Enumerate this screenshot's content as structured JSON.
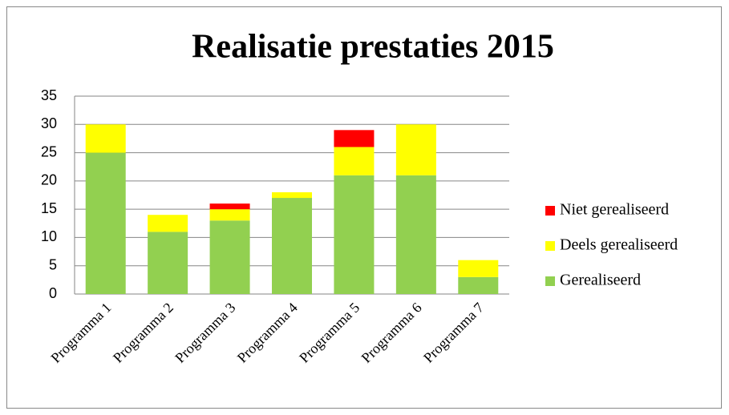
{
  "chart_data": {
    "type": "stacked_bar",
    "title": "Realisatie prestaties 2015",
    "categories": [
      "Programma 1",
      "Programma 2",
      "Programma 3",
      "Programma 4",
      "Programma 5",
      "Programma 6",
      "Programma 7"
    ],
    "series": [
      {
        "name": "Gerealiseerd",
        "color": "#92d050",
        "values": [
          25,
          11,
          13,
          17,
          21,
          21,
          3
        ]
      },
      {
        "name": "Deels gerealiseerd",
        "color": "#ffff00",
        "values": [
          5,
          3,
          2,
          1,
          5,
          9,
          3
        ]
      },
      {
        "name": "Niet gerealiseerd",
        "color": "#ff0000",
        "values": [
          0,
          0,
          1,
          0,
          3,
          0,
          0
        ]
      }
    ],
    "ylim": [
      0,
      35
    ],
    "yticks": [
      0,
      5,
      10,
      15,
      20,
      25,
      30,
      35
    ],
    "grid": true,
    "legend": "right"
  }
}
